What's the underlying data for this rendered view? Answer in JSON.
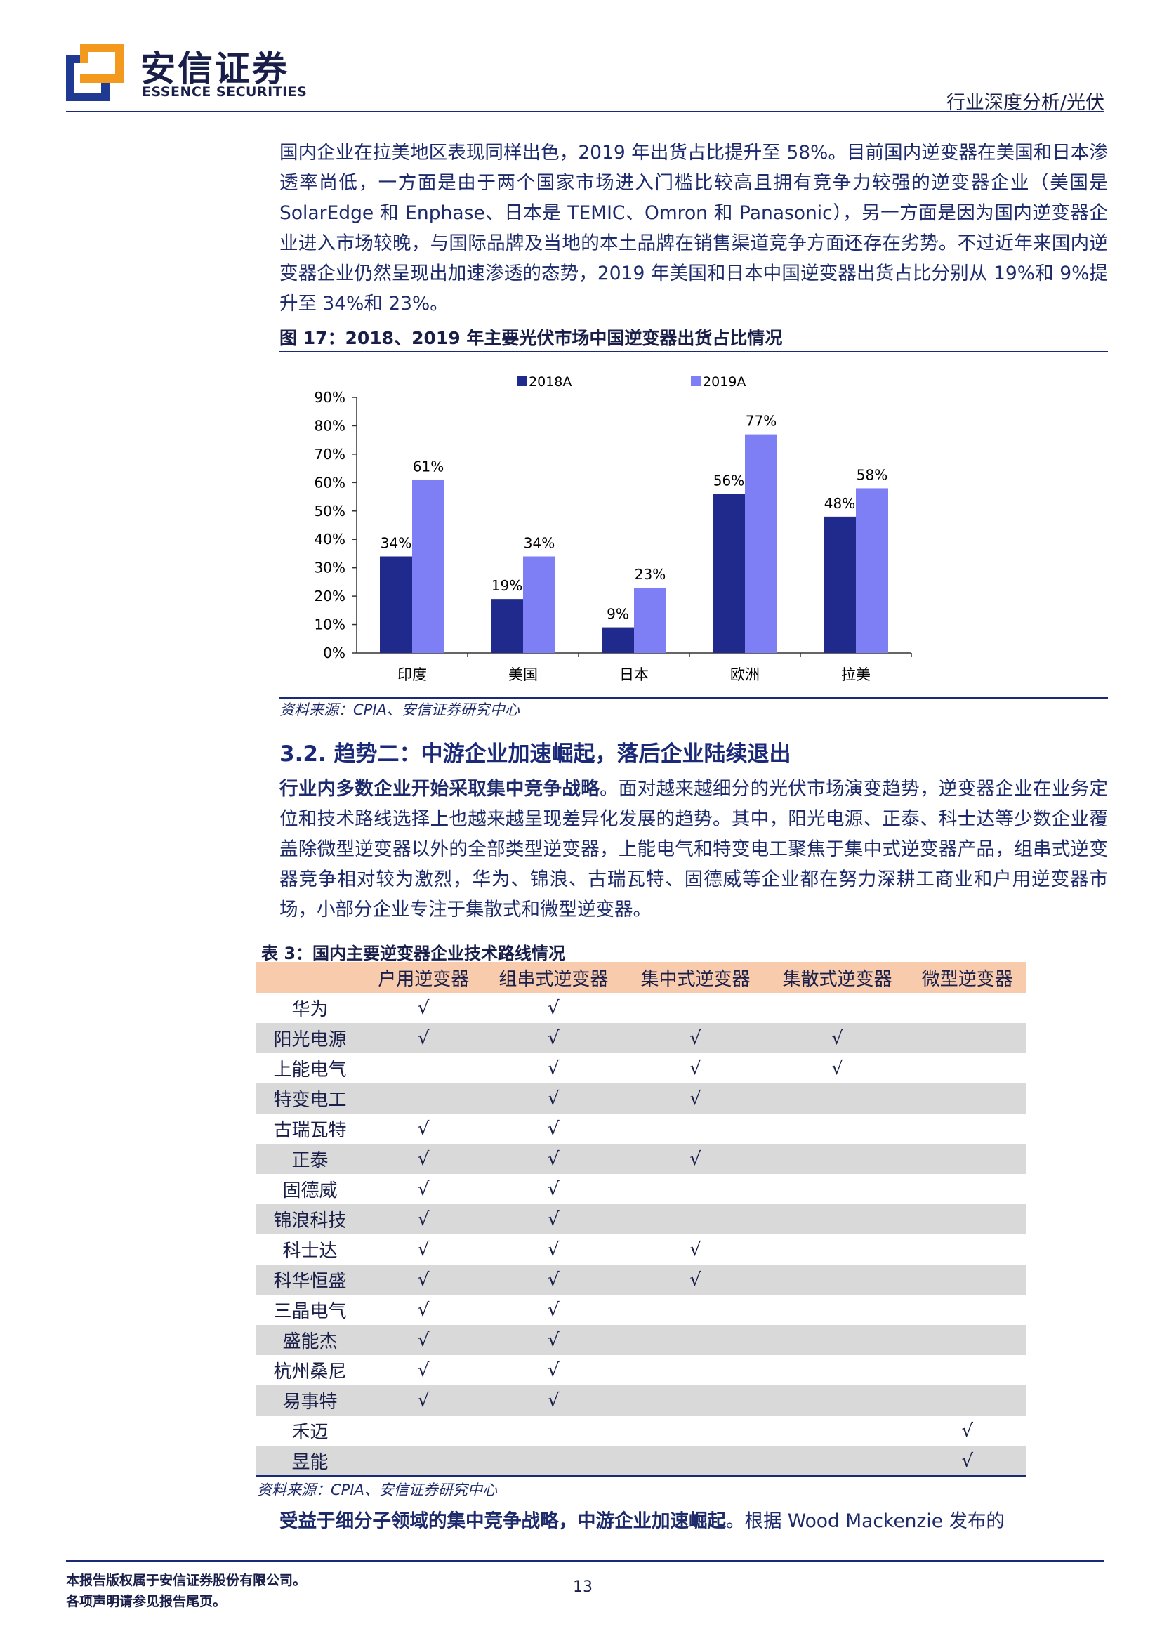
{
  "header": {
    "logo_cn": "安信证券",
    "logo_en": "ESSENCE SECURITIES",
    "report_type": "行业深度分析/光伏"
  },
  "para1": "国内企业在拉美地区表现同样出色，2019 年出货占比提升至 58%。目前国内逆变器在美国和日本渗透率尚低，一方面是由于两个国家市场进入门槛比较高且拥有竞争力较强的逆变器企业（美国是 SolarEdge 和 Enphase、日本是 TEMIC、Omron 和 Panasonic），另一方面是因为国内逆变器企业进入市场较晚，与国际品牌及当地的本土品牌在销售渠道竞争方面还存在劣势。不过近年来国内逆变器企业仍然呈现出加速渗透的态势，2019 年美国和日本中国逆变器出货占比分别从 19%和 9%提升至 34%和 23%。",
  "figure": {
    "title": "图 17：2018、2019 年主要光伏市场中国逆变器出货占比情况",
    "source": "资料来源：CPIA、安信证券研究中心"
  },
  "chart_data": {
    "type": "bar",
    "categories": [
      "印度",
      "美国",
      "日本",
      "欧洲",
      "拉美"
    ],
    "series": [
      {
        "name": "2018A",
        "values": [
          34,
          19,
          9,
          56,
          48
        ],
        "labels": [
          "34%",
          "19%",
          "9%",
          "56%",
          "48%"
        ],
        "color": "#1f2a8c"
      },
      {
        "name": "2019A",
        "values": [
          61,
          34,
          23,
          77,
          58
        ],
        "labels": [
          "61%",
          "34%",
          "23%",
          "77%",
          "58%"
        ],
        "color": "#7f7ff5"
      }
    ],
    "yticks": [
      "0%",
      "10%",
      "20%",
      "30%",
      "40%",
      "50%",
      "60%",
      "70%",
      "80%",
      "90%"
    ],
    "ylim": [
      0,
      90
    ],
    "legend": "top",
    "grid": false
  },
  "section": {
    "heading": "3.2. 趋势二：中游企业加速崛起，落后企业陆续退出",
    "lead_bold": "行业内多数企业开始采取集中竞争战略",
    "lead_rest": "。面对越来越细分的光伏市场演变趋势，逆变器企业在业务定位和技术路线选择上也越来越呈现差异化发展的趋势。其中，阳光电源、正泰、科士达等少数企业覆盖除微型逆变器以外的全部类型逆变器，上能电气和特变电工聚焦于集中式逆变器产品，组串式逆变器竞争相对较为激烈，华为、锦浪、古瑞瓦特、固德威等企业都在努力深耕工商业和户用逆变器市场，小部分企业专注于集散式和微型逆变器。"
  },
  "table": {
    "title": "表 3：国内主要逆变器企业技术路线情况",
    "columns": [
      "",
      "户用逆变器",
      "组串式逆变器",
      "集中式逆变器",
      "集散式逆变器",
      "微型逆变器"
    ],
    "rows": [
      [
        "华为",
        "√",
        "√",
        "",
        "",
        ""
      ],
      [
        "阳光电源",
        "√",
        "√",
        "√",
        "√",
        ""
      ],
      [
        "上能电气",
        "",
        "√",
        "√",
        "√",
        ""
      ],
      [
        "特变电工",
        "",
        "√",
        "√",
        "",
        ""
      ],
      [
        "古瑞瓦特",
        "√",
        "√",
        "",
        "",
        ""
      ],
      [
        "正泰",
        "√",
        "√",
        "√",
        "",
        ""
      ],
      [
        "固德威",
        "√",
        "√",
        "",
        "",
        ""
      ],
      [
        "锦浪科技",
        "√",
        "√",
        "",
        "",
        ""
      ],
      [
        "科士达",
        "√",
        "√",
        "√",
        "",
        ""
      ],
      [
        "科华恒盛",
        "√",
        "√",
        "√",
        "",
        ""
      ],
      [
        "三晶电气",
        "√",
        "√",
        "",
        "",
        ""
      ],
      [
        "盛能杰",
        "√",
        "√",
        "",
        "",
        ""
      ],
      [
        "杭州桑尼",
        "√",
        "√",
        "",
        "",
        ""
      ],
      [
        "易事特",
        "√",
        "√",
        "",
        "",
        ""
      ],
      [
        "禾迈",
        "",
        "",
        "",
        "",
        "√"
      ],
      [
        "昱能",
        "",
        "",
        "",
        "",
        "√"
      ]
    ],
    "source": "资料来源：CPIA、安信证券研究中心"
  },
  "closing": {
    "bold": "受益于细分子领域的集中竞争战略，中游企业加速崛起",
    "rest": "。根据 Wood Mackenzie 发布的"
  },
  "footer": {
    "line1": "本报告版权属于安信证券股份有限公司。",
    "line2": "各项声明请参见报告尾页。",
    "page": "13"
  }
}
